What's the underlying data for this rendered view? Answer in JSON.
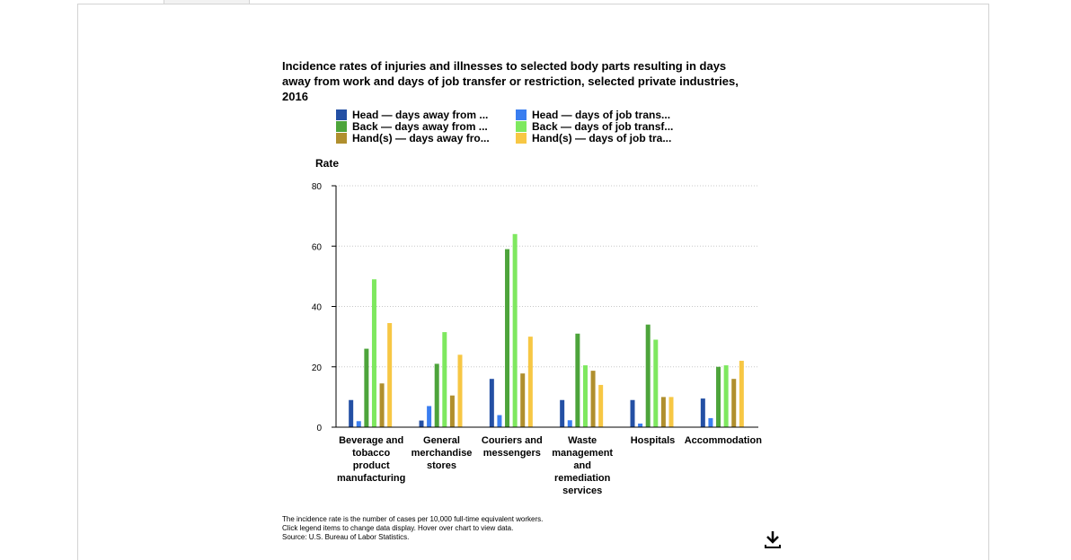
{
  "chart_data": {
    "type": "bar",
    "title": "Incidence rates of injuries and illnesses to selected body parts resulting in days away from work and days of job transfer or restriction, selected private industries, 2016",
    "xlabel": "",
    "ylabel": "Rate",
    "ylim": [
      0,
      80
    ],
    "yticks": [
      0,
      20,
      40,
      60,
      80
    ],
    "grid": true,
    "legend_position": "top",
    "categories": [
      "Beverage and tobacco product manufacturing",
      "General merchandise stores",
      "Couriers and messengers",
      "Waste management and remediation services",
      "Hospitals",
      "Accommodation"
    ],
    "category_lines": [
      [
        "Beverage and",
        "tobacco",
        "product",
        "manufacturing"
      ],
      [
        "General",
        "merchandise",
        "stores"
      ],
      [
        "Couriers and",
        "messengers"
      ],
      [
        "Waste",
        "management",
        "and",
        "remediation",
        "services"
      ],
      [
        "Hospitals"
      ],
      [
        "Accommodation"
      ]
    ],
    "series": [
      {
        "name": "Head — days away from ...",
        "color": "#2450a4",
        "values": [
          9.0,
          2.2,
          16.0,
          9.0,
          9.0,
          9.5
        ]
      },
      {
        "name": "Head — days of job trans...",
        "color": "#3a7ef0",
        "values": [
          2.0,
          7.0,
          4.0,
          2.3,
          1.2,
          3.0
        ]
      },
      {
        "name": "Back — days away from ...",
        "color": "#4da43b",
        "values": [
          26.0,
          21.0,
          59.0,
          31.0,
          34.0,
          20.0
        ]
      },
      {
        "name": "Back — days of job transf...",
        "color": "#7ee85f",
        "values": [
          49.0,
          31.5,
          64.0,
          20.5,
          29.0,
          20.5
        ]
      },
      {
        "name": "Hand(s) — days away fro...",
        "color": "#b08f2e",
        "values": [
          14.5,
          10.5,
          17.8,
          18.7,
          10.0,
          16.0
        ]
      },
      {
        "name": "Hand(s) — days of job tra...",
        "color": "#f7c744",
        "values": [
          34.5,
          24.0,
          30.0,
          14.0,
          10.0,
          22.0
        ]
      }
    ]
  },
  "footnotes": [
    "The incidence rate is the number of cases per 10,000 full-time equivalent workers.",
    "Click legend items to change data display. Hover over chart to view data.",
    "Source: U.S. Bureau of Labor Statistics."
  ],
  "icons": {
    "download": "download-icon"
  }
}
